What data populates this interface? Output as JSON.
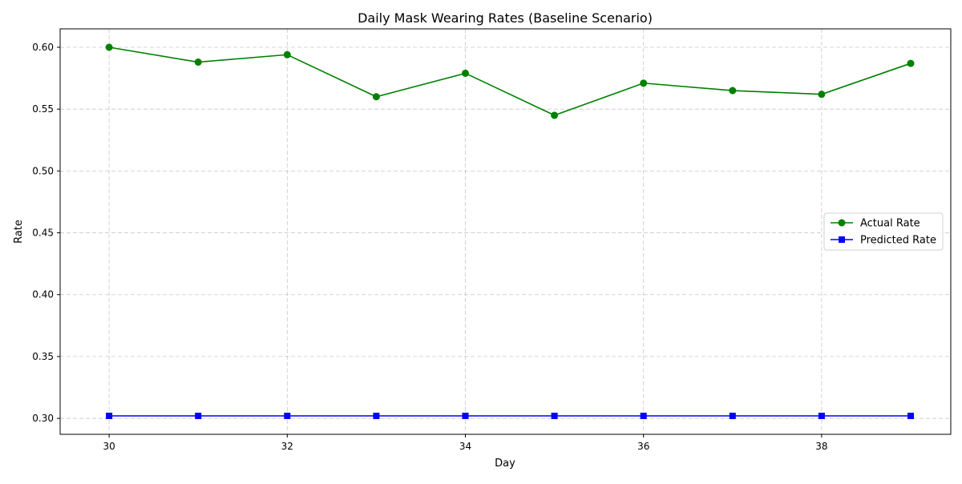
{
  "chart_data": {
    "type": "line",
    "title": "Daily Mask Wearing Rates (Baseline Scenario)",
    "xlabel": "Day",
    "ylabel": "Rate",
    "xlim": [
      29.45,
      39.45
    ],
    "ylim": [
      0.2871,
      0.6149
    ],
    "x_ticks": [
      30,
      32,
      34,
      36,
      38
    ],
    "y_ticks": [
      0.3,
      0.35,
      0.4,
      0.45,
      0.5,
      0.55,
      0.6
    ],
    "grid": true,
    "legend_position": "center-right",
    "x": [
      30,
      31,
      32,
      33,
      34,
      35,
      36,
      37,
      38,
      39
    ],
    "series": [
      {
        "name": "Actual Rate",
        "color": "#008000",
        "marker": "circle",
        "values": [
          0.6,
          0.588,
          0.594,
          0.56,
          0.579,
          0.545,
          0.571,
          0.565,
          0.562,
          0.587
        ]
      },
      {
        "name": "Predicted Rate",
        "color": "#0000ff",
        "marker": "square",
        "values": [
          0.302,
          0.302,
          0.302,
          0.302,
          0.302,
          0.302,
          0.302,
          0.302,
          0.302,
          0.302
        ]
      }
    ]
  }
}
